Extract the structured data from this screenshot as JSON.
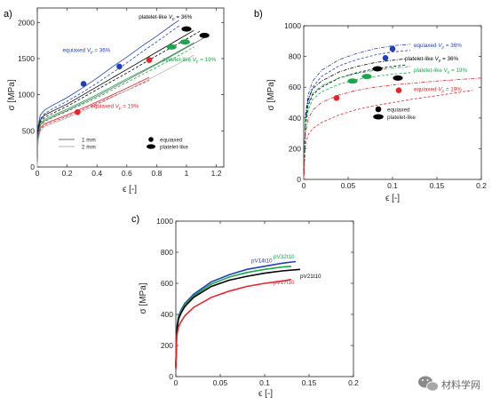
{
  "colors": {
    "blue": "#1f3fbf",
    "green": "#1aa64a",
    "red": "#e8232a",
    "black": "#000000",
    "grey_mid": "#6f6f6f",
    "grey_light": "#b0b0b0"
  },
  "chart_data": [
    {
      "panel": "a)",
      "type": "line",
      "xlabel": "ϵ [-]",
      "ylabel": "σ [MPa]",
      "xlim": [
        0,
        1.25
      ],
      "ylim": [
        0,
        2200
      ],
      "xticks": [
        0,
        0.2,
        0.4,
        0.6,
        0.8,
        1,
        1.2
      ],
      "xtick_labels": [
        "0",
        "0.2",
        "0.4",
        "0.6",
        "0.8",
        "1",
        "1.2"
      ],
      "yticks": [
        0,
        500,
        1000,
        1500,
        2000
      ],
      "ytick_labels": [
        "0",
        "500",
        "1000",
        "1500",
        "2000"
      ],
      "grid": false,
      "series": [
        {
          "color": "blue",
          "style": "solid",
          "x": [
            0,
            0.005,
            0.02,
            0.05,
            0.1,
            0.2,
            0.3,
            0.4,
            0.5,
            0.6,
            0.7,
            0.8,
            0.9,
            0.95
          ],
          "y": [
            0,
            560,
            720,
            790,
            850,
            960,
            1090,
            1230,
            1380,
            1520,
            1670,
            1810,
            1960,
            2030
          ]
        },
        {
          "color": "blue",
          "style": "dashed",
          "x": [
            0,
            0.005,
            0.02,
            0.05,
            0.1,
            0.2,
            0.3,
            0.4,
            0.5,
            0.6,
            0.7,
            0.8,
            0.9,
            0.95
          ],
          "y": [
            0,
            520,
            670,
            740,
            800,
            910,
            1030,
            1160,
            1300,
            1440,
            1590,
            1730,
            1880,
            1950
          ]
        },
        {
          "color": "black",
          "style": "solid",
          "x": [
            0,
            0.005,
            0.02,
            0.05,
            0.1,
            0.2,
            0.4,
            0.6,
            0.8,
            1.0,
            1.05
          ],
          "y": [
            0,
            500,
            650,
            720,
            770,
            870,
            1110,
            1350,
            1590,
            1830,
            1890
          ]
        },
        {
          "color": "black",
          "style": "dashed",
          "x": [
            0,
            0.005,
            0.02,
            0.05,
            0.1,
            0.2,
            0.4,
            0.6,
            0.8,
            1.0,
            1.1
          ],
          "y": [
            0,
            470,
            620,
            690,
            740,
            840,
            1070,
            1300,
            1540,
            1770,
            1890
          ]
        },
        {
          "color": "green",
          "style": "solid",
          "x": [
            0,
            0.005,
            0.02,
            0.05,
            0.1,
            0.2,
            0.4,
            0.6,
            0.8,
            1.0,
            1.05
          ],
          "y": [
            0,
            450,
            600,
            660,
            710,
            800,
            1000,
            1220,
            1430,
            1660,
            1720
          ]
        },
        {
          "color": "green",
          "style": "dashed",
          "x": [
            0,
            0.005,
            0.02,
            0.05,
            0.1,
            0.2,
            0.4,
            0.6,
            0.8,
            1.0,
            1.05
          ],
          "y": [
            0,
            420,
            570,
            630,
            680,
            770,
            960,
            1170,
            1380,
            1600,
            1660
          ]
        },
        {
          "color": "red",
          "style": "solid",
          "x": [
            0,
            0.005,
            0.02,
            0.05,
            0.1,
            0.2,
            0.4,
            0.6,
            0.75
          ],
          "y": [
            0,
            400,
            540,
            600,
            640,
            720,
            900,
            1090,
            1240
          ]
        },
        {
          "color": "red",
          "style": "dashed",
          "x": [
            0,
            0.005,
            0.02,
            0.05,
            0.1,
            0.2,
            0.4,
            0.6,
            0.75
          ],
          "y": [
            0,
            380,
            520,
            580,
            620,
            700,
            880,
            1060,
            1200
          ]
        },
        {
          "color": "grey_mid",
          "style": "solid",
          "x": [
            0,
            0.005,
            0.02,
            0.05,
            0.1,
            0.2,
            0.4,
            0.6,
            0.8,
            1.0,
            1.12
          ],
          "y": [
            0,
            430,
            580,
            640,
            690,
            780,
            980,
            1200,
            1420,
            1650,
            1790
          ]
        },
        {
          "color": "grey_light",
          "style": "solid",
          "x": [
            0,
            0.005,
            0.02,
            0.05,
            0.1,
            0.2,
            0.4,
            0.6,
            0.8,
            1.0,
            1.05
          ],
          "y": [
            0,
            360,
            500,
            560,
            600,
            680,
            860,
            1060,
            1270,
            1490,
            1550
          ]
        }
      ],
      "points": [
        {
          "shape": "circle",
          "color": "blue",
          "x": [
            0.31,
            0.55
          ],
          "y": [
            1150,
            1390
          ]
        },
        {
          "shape": "circle",
          "color": "red",
          "x": [
            0.27,
            0.75
          ],
          "y": [
            760,
            1480
          ]
        },
        {
          "shape": "ellipse",
          "color": "green",
          "x": [
            0.9,
            0.99
          ],
          "y": [
            1660,
            1730
          ]
        },
        {
          "shape": "ellipse",
          "color": "black",
          "x": [
            1.0,
            1.12
          ],
          "y": [
            1910,
            1820
          ]
        }
      ],
      "annotations": [
        {
          "text": "platelet-like Vp = 36%",
          "color": "black",
          "x": 0.68,
          "y": 2050
        },
        {
          "text": "equiaxed Vp = 36%",
          "color": "blue",
          "x": 0.17,
          "y": 1590
        },
        {
          "text": "platelet-like Vp = 19%",
          "color": "green",
          "x": 0.84,
          "y": 1460
        },
        {
          "text": "equiaxed Vp = 19%",
          "color": "red",
          "x": 0.36,
          "y": 820
        }
      ],
      "legend": {
        "placement": "bottom-right",
        "lines": [
          {
            "label": "1 mm",
            "color": "grey_mid"
          },
          {
            "label": "2 mm",
            "color": "grey_light"
          }
        ],
        "markers": [
          {
            "label": "equiaxed",
            "shape": "circle"
          },
          {
            "label": "platelet-like",
            "shape": "ellipse"
          }
        ]
      }
    },
    {
      "panel": "b)",
      "type": "line",
      "xlabel": "ϵ [-]",
      "ylabel": "σ [MPa]",
      "xlim": [
        0,
        0.2
      ],
      "ylim": [
        0,
        1000
      ],
      "xticks": [
        0,
        0.05,
        0.1,
        0.15,
        0.2
      ],
      "xtick_labels": [
        "0",
        "0.05",
        "0.1",
        "0.15",
        "0.2"
      ],
      "yticks": [
        0,
        200,
        400,
        600,
        800,
        1000
      ],
      "ytick_labels": [
        "0",
        "200",
        "400",
        "600",
        "800",
        "1000"
      ],
      "grid": false,
      "series": [
        {
          "color": "blue",
          "style": "dashdot",
          "x": [
            0,
            0.002,
            0.005,
            0.01,
            0.02,
            0.04,
            0.06,
            0.08,
            0.1,
            0.12
          ],
          "y": [
            0,
            420,
            550,
            640,
            710,
            780,
            820,
            850,
            870,
            880
          ]
        },
        {
          "color": "blue",
          "style": "dashed",
          "x": [
            0,
            0.002,
            0.005,
            0.01,
            0.02,
            0.04,
            0.06,
            0.08,
            0.1,
            0.12
          ],
          "y": [
            0,
            380,
            510,
            600,
            670,
            740,
            780,
            810,
            830,
            840
          ]
        },
        {
          "color": "black",
          "style": "dashdot",
          "x": [
            0,
            0.002,
            0.005,
            0.01,
            0.02,
            0.04,
            0.06,
            0.08,
            0.1,
            0.115
          ],
          "y": [
            0,
            400,
            520,
            590,
            640,
            700,
            735,
            760,
            775,
            785
          ]
        },
        {
          "color": "black",
          "style": "dashed",
          "x": [
            0,
            0.002,
            0.005,
            0.01,
            0.02,
            0.04,
            0.06,
            0.08,
            0.1,
            0.115
          ],
          "y": [
            0,
            360,
            480,
            550,
            600,
            660,
            695,
            720,
            735,
            745
          ]
        },
        {
          "color": "green",
          "style": "dashdot",
          "x": [
            0,
            0.002,
            0.005,
            0.01,
            0.02,
            0.04,
            0.06,
            0.08,
            0.1,
            0.12
          ],
          "y": [
            0,
            380,
            490,
            560,
            610,
            660,
            690,
            710,
            725,
            735
          ]
        },
        {
          "color": "green",
          "style": "dashed",
          "x": [
            0,
            0.002,
            0.005,
            0.01,
            0.02,
            0.04,
            0.06,
            0.08,
            0.1,
            0.12
          ],
          "y": [
            0,
            340,
            450,
            520,
            570,
            620,
            650,
            670,
            685,
            695
          ]
        },
        {
          "color": "red",
          "style": "dashdot",
          "x": [
            0,
            0.002,
            0.005,
            0.01,
            0.02,
            0.04,
            0.06,
            0.08,
            0.1,
            0.12,
            0.15,
            0.2
          ],
          "y": [
            0,
            300,
            390,
            450,
            500,
            550,
            580,
            600,
            615,
            625,
            640,
            660
          ]
        },
        {
          "color": "red",
          "style": "dashed",
          "x": [
            0,
            0.002,
            0.005,
            0.01,
            0.02,
            0.04,
            0.06,
            0.08,
            0.1,
            0.12,
            0.15,
            0.19
          ],
          "y": [
            0,
            230,
            290,
            330,
            370,
            420,
            455,
            480,
            500,
            520,
            545,
            580
          ]
        }
      ],
      "points": [
        {
          "shape": "circle",
          "color": "blue",
          "x": [
            0.092,
            0.1
          ],
          "y": [
            790,
            850
          ]
        },
        {
          "shape": "ellipse",
          "color": "black",
          "x": [
            0.083,
            0.106
          ],
          "y": [
            720,
            660
          ]
        },
        {
          "shape": "ellipse",
          "color": "green",
          "x": [
            0.055,
            0.071
          ],
          "y": [
            640,
            670
          ]
        },
        {
          "shape": "circle",
          "color": "red",
          "x": [
            0.037,
            0.107
          ],
          "y": [
            530,
            580
          ]
        }
      ],
      "annotations": [
        {
          "text": "equiaxed Vp = 36%",
          "color": "blue",
          "x": 0.124,
          "y": 860
        },
        {
          "text": "platelet-like Vp = 36%",
          "color": "black",
          "x": 0.114,
          "y": 775
        },
        {
          "text": "platelet-like Vp = 19%",
          "color": "green",
          "x": 0.124,
          "y": 700
        },
        {
          "text": "equiaxed Vp = 19%",
          "color": "red",
          "x": 0.124,
          "y": 575
        }
      ],
      "legend": {
        "placement": "center-right",
        "markers": [
          {
            "label": "equiaxed",
            "shape": "circle"
          },
          {
            "label": "platelet-like",
            "shape": "ellipse"
          }
        ]
      }
    },
    {
      "panel": "c)",
      "type": "line",
      "xlabel": "ϵ [-]",
      "ylabel": "σ [MPa]",
      "xlim": [
        0,
        0.2
      ],
      "ylim": [
        0,
        1000
      ],
      "xticks": [
        0,
        0.05,
        0.1,
        0.15,
        0.2
      ],
      "xtick_labels": [
        "0",
        "0.05",
        "0.1",
        "0.15",
        "0.2"
      ],
      "yticks": [
        0,
        200,
        400,
        600,
        800,
        1000
      ],
      "ytick_labels": [
        "0",
        "200",
        "400",
        "600",
        "800",
        "1000"
      ],
      "grid": false,
      "series": [
        {
          "label": "pV14t10",
          "color": "blue",
          "style": "solid",
          "x": [
            0,
            0.001,
            0.003,
            0.006,
            0.01,
            0.02,
            0.04,
            0.06,
            0.08,
            0.1,
            0.12,
            0.135
          ],
          "y": [
            60,
            310,
            390,
            430,
            470,
            530,
            610,
            655,
            690,
            710,
            730,
            740
          ]
        },
        {
          "label": "pV32t10",
          "color": "green",
          "style": "solid",
          "x": [
            0,
            0.001,
            0.003,
            0.006,
            0.01,
            0.02,
            0.04,
            0.06,
            0.08,
            0.1,
            0.12,
            0.13
          ],
          "y": [
            60,
            300,
            380,
            420,
            460,
            520,
            595,
            640,
            670,
            690,
            705,
            710
          ]
        },
        {
          "label": "pV21t10",
          "color": "black",
          "style": "solid",
          "x": [
            0,
            0.001,
            0.003,
            0.006,
            0.01,
            0.02,
            0.04,
            0.06,
            0.08,
            0.1,
            0.12,
            0.14
          ],
          "y": [
            60,
            290,
            370,
            410,
            450,
            510,
            580,
            620,
            645,
            665,
            680,
            690
          ]
        },
        {
          "label": "pV17t10",
          "color": "red",
          "style": "solid",
          "x": [
            0,
            0.001,
            0.003,
            0.006,
            0.01,
            0.02,
            0.04,
            0.06,
            0.08,
            0.1,
            0.12,
            0.13
          ],
          "y": [
            50,
            260,
            320,
            355,
            390,
            445,
            510,
            550,
            580,
            600,
            615,
            625
          ]
        }
      ],
      "annotations": [
        {
          "text": "pV32t10",
          "color": "green",
          "x": 0.11,
          "y": 760
        },
        {
          "text": "pV14t10",
          "color": "blue",
          "x": 0.085,
          "y": 735
        },
        {
          "text": "pV21t10",
          "color": "black",
          "x": 0.14,
          "y": 635
        },
        {
          "text": "pV17t10",
          "color": "red",
          "x": 0.11,
          "y": 595
        }
      ]
    }
  ],
  "watermark": {
    "text": "材料学网",
    "icon": "wechat-icon"
  }
}
